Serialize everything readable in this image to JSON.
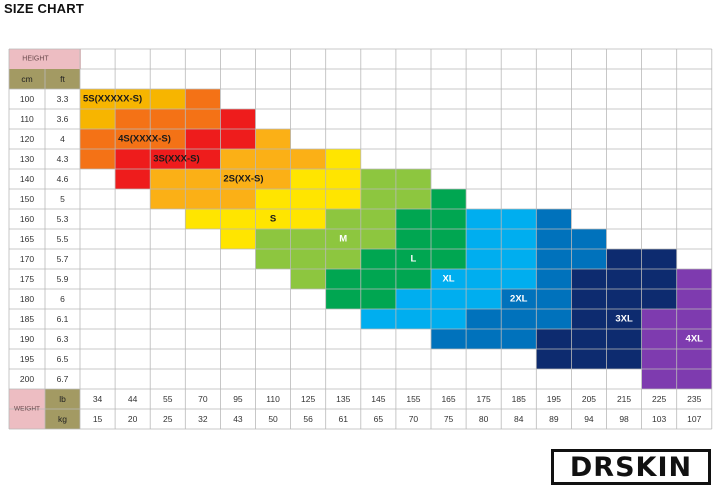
{
  "title": "SIZE CHART",
  "brand": "DRSKIN",
  "chart_data": {
    "type": "heatmap",
    "height_label": "HEIGHT",
    "height_units": [
      "cm",
      "ft"
    ],
    "heights_cm": [
      "100",
      "110",
      "120",
      "130",
      "140",
      "150",
      "160",
      "165",
      "170",
      "175",
      "180",
      "185",
      "190",
      "195",
      "200"
    ],
    "heights_ft": [
      "3.3",
      "3.6",
      "4",
      "4.3",
      "4.6",
      "5",
      "5.3",
      "5.5",
      "5.7",
      "5.9",
      "6",
      "6.1",
      "6.3",
      "6.5",
      "6.7"
    ],
    "weight_label": "WEIGHT",
    "weight_units": [
      "lb",
      "kg"
    ],
    "weights_lb": [
      "34",
      "44",
      "55",
      "70",
      "95",
      "110",
      "125",
      "135",
      "145",
      "155",
      "165",
      "175",
      "185",
      "195",
      "205",
      "215",
      "225",
      "235"
    ],
    "weights_kg": [
      "15",
      "20",
      "25",
      "32",
      "43",
      "50",
      "56",
      "61",
      "65",
      "70",
      "75",
      "80",
      "84",
      "89",
      "94",
      "98",
      "103",
      "107"
    ],
    "sizes": [
      {
        "name": "5S(XXXXX-S)",
        "color": "#F7B500",
        "label_row": "100",
        "label_col": "34",
        "cells": [
          [
            "100",
            "34"
          ],
          [
            "100",
            "44"
          ],
          [
            "100",
            "55"
          ],
          [
            "110",
            "34"
          ]
        ]
      },
      {
        "name": "4S(XXXX-S)",
        "color": "#F47216",
        "label_row": "120",
        "label_col": "44",
        "cells": [
          [
            "100",
            "70"
          ],
          [
            "110",
            "44"
          ],
          [
            "110",
            "55"
          ],
          [
            "110",
            "70"
          ],
          [
            "120",
            "34"
          ],
          [
            "120",
            "44"
          ],
          [
            "120",
            "55"
          ],
          [
            "130",
            "34"
          ]
        ]
      },
      {
        "name": "3S(XXX-S)",
        "color": "#EE1C1C",
        "label_row": "130",
        "label_col": "55",
        "cells": [
          [
            "110",
            "95"
          ],
          [
            "120",
            "70"
          ],
          [
            "120",
            "95"
          ],
          [
            "130",
            "44"
          ],
          [
            "130",
            "55"
          ],
          [
            "130",
            "70"
          ],
          [
            "140",
            "44"
          ]
        ]
      },
      {
        "name": "2S(XX-S)",
        "color": "#FBB016",
        "label_row": "140",
        "label_col": "95",
        "cells": [
          [
            "120",
            "110"
          ],
          [
            "130",
            "95"
          ],
          [
            "130",
            "110"
          ],
          [
            "130",
            "125"
          ],
          [
            "140",
            "55"
          ],
          [
            "140",
            "70"
          ],
          [
            "140",
            "95"
          ],
          [
            "140",
            "110"
          ],
          [
            "150",
            "55"
          ],
          [
            "150",
            "70"
          ],
          [
            "150",
            "95"
          ]
        ]
      },
      {
        "name": "S",
        "color": "#FFE500",
        "label_row": "160",
        "label_col": "110",
        "cells": [
          [
            "130",
            "135"
          ],
          [
            "140",
            "125"
          ],
          [
            "140",
            "135"
          ],
          [
            "150",
            "110"
          ],
          [
            "150",
            "125"
          ],
          [
            "150",
            "135"
          ],
          [
            "160",
            "70"
          ],
          [
            "160",
            "95"
          ],
          [
            "160",
            "110"
          ],
          [
            "160",
            "125"
          ],
          [
            "165",
            "95"
          ]
        ]
      },
      {
        "name": "M",
        "color": "#8DC63F",
        "label_row": "165",
        "label_col": "135",
        "cells": [
          [
            "140",
            "145"
          ],
          [
            "140",
            "155"
          ],
          [
            "150",
            "145"
          ],
          [
            "150",
            "155"
          ],
          [
            "160",
            "135"
          ],
          [
            "160",
            "145"
          ],
          [
            "165",
            "110"
          ],
          [
            "165",
            "125"
          ],
          [
            "165",
            "135"
          ],
          [
            "165",
            "145"
          ],
          [
            "170",
            "110"
          ],
          [
            "170",
            "125"
          ],
          [
            "170",
            "135"
          ],
          [
            "175",
            "125"
          ]
        ]
      },
      {
        "name": "L",
        "color": "#00A651",
        "label_row": "170",
        "label_col": "155",
        "cells": [
          [
            "150",
            "165"
          ],
          [
            "160",
            "155"
          ],
          [
            "160",
            "165"
          ],
          [
            "165",
            "155"
          ],
          [
            "165",
            "165"
          ],
          [
            "170",
            "145"
          ],
          [
            "170",
            "155"
          ],
          [
            "170",
            "165"
          ],
          [
            "175",
            "135"
          ],
          [
            "175",
            "145"
          ],
          [
            "175",
            "155"
          ],
          [
            "180",
            "135"
          ],
          [
            "180",
            "145"
          ]
        ]
      },
      {
        "name": "XL",
        "color": "#00AEEF",
        "label_row": "175",
        "label_col": "165",
        "cells": [
          [
            "160",
            "175"
          ],
          [
            "160",
            "185"
          ],
          [
            "165",
            "175"
          ],
          [
            "165",
            "185"
          ],
          [
            "170",
            "175"
          ],
          [
            "170",
            "185"
          ],
          [
            "175",
            "165"
          ],
          [
            "175",
            "175"
          ],
          [
            "175",
            "185"
          ],
          [
            "180",
            "155"
          ],
          [
            "180",
            "165"
          ],
          [
            "180",
            "175"
          ],
          [
            "185",
            "145"
          ],
          [
            "185",
            "155"
          ],
          [
            "185",
            "165"
          ]
        ]
      },
      {
        "name": "2XL",
        "color": "#0072BC",
        "label_row": "180",
        "label_col": "185",
        "cells": [
          [
            "160",
            "195"
          ],
          [
            "165",
            "195"
          ],
          [
            "165",
            "205"
          ],
          [
            "170",
            "195"
          ],
          [
            "170",
            "205"
          ],
          [
            "175",
            "195"
          ],
          [
            "180",
            "185"
          ],
          [
            "180",
            "195"
          ],
          [
            "185",
            "175"
          ],
          [
            "185",
            "185"
          ],
          [
            "185",
            "195"
          ],
          [
            "190",
            "165"
          ],
          [
            "190",
            "175"
          ],
          [
            "190",
            "185"
          ]
        ]
      },
      {
        "name": "3XL",
        "color": "#0D2B6F",
        "label_row": "185",
        "label_col": "215",
        "cells": [
          [
            "170",
            "215"
          ],
          [
            "170",
            "225"
          ],
          [
            "175",
            "205"
          ],
          [
            "175",
            "215"
          ],
          [
            "175",
            "225"
          ],
          [
            "180",
            "205"
          ],
          [
            "180",
            "215"
          ],
          [
            "180",
            "225"
          ],
          [
            "185",
            "205"
          ],
          [
            "185",
            "215"
          ],
          [
            "190",
            "195"
          ],
          [
            "190",
            "205"
          ],
          [
            "190",
            "215"
          ],
          [
            "195",
            "195"
          ],
          [
            "195",
            "205"
          ],
          [
            "195",
            "215"
          ]
        ]
      },
      {
        "name": "4XL",
        "color": "#7E3BAF",
        "label_row": "190",
        "label_col": "235",
        "cells": [
          [
            "175",
            "235"
          ],
          [
            "180",
            "235"
          ],
          [
            "185",
            "225"
          ],
          [
            "185",
            "235"
          ],
          [
            "190",
            "225"
          ],
          [
            "190",
            "235"
          ],
          [
            "195",
            "225"
          ],
          [
            "195",
            "235"
          ],
          [
            "200",
            "225"
          ],
          [
            "200",
            "235"
          ]
        ]
      }
    ],
    "colors": {
      "header_pink": "#EDBDC2",
      "unit_olive": "#A39A63",
      "grid_line": "#B9B9B9",
      "label_dark": "#1A1A1A",
      "label_light": "#FFFFFF"
    }
  }
}
